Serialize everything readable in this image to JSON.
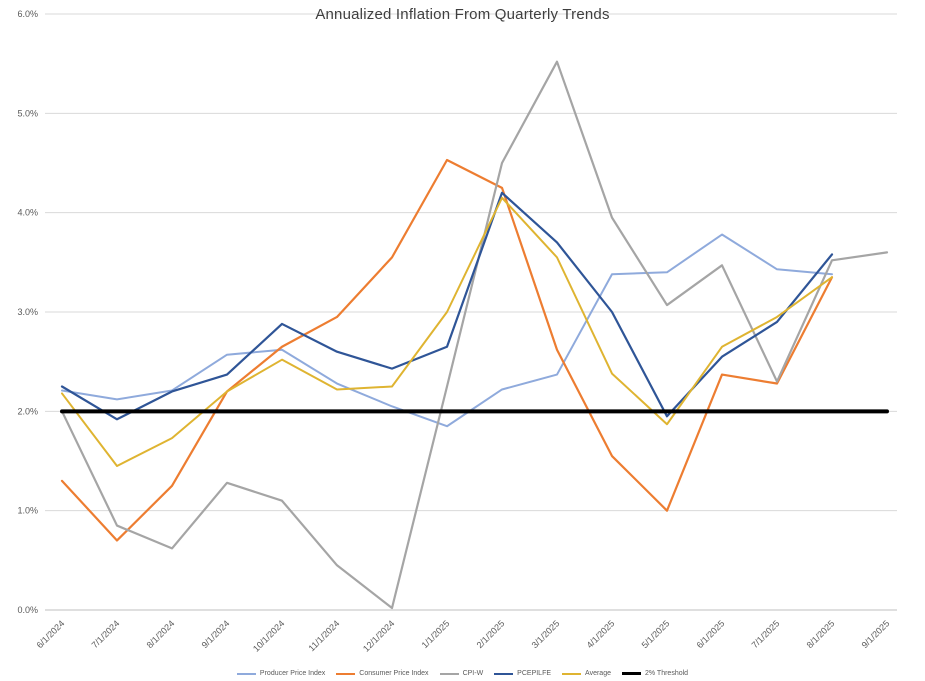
{
  "chart_data": {
    "type": "line",
    "title": "Annualized Inflation From Quarterly Trends",
    "categories": [
      "6/1/2024",
      "7/1/2024",
      "8/1/2024",
      "9/1/2024",
      "10/1/2024",
      "11/1/2024",
      "12/1/2024",
      "1/1/2025",
      "2/1/2025",
      "3/1/2025",
      "4/1/2025",
      "5/1/2025",
      "6/1/2025",
      "7/1/2025",
      "8/1/2025",
      "9/1/2025"
    ],
    "series": [
      {
        "name": "Producer Price Index",
        "color": "#8FAADC",
        "width": 2,
        "values": [
          2.21,
          2.12,
          2.21,
          2.57,
          2.62,
          2.28,
          2.05,
          1.85,
          2.22,
          2.37,
          3.38,
          3.4,
          3.78,
          3.43,
          3.38,
          null
        ]
      },
      {
        "name": "Consumer Price Index",
        "color": "#ED7D31",
        "width": 2.2,
        "values": [
          1.3,
          0.7,
          1.25,
          2.2,
          2.65,
          2.95,
          3.55,
          4.53,
          4.25,
          2.62,
          1.55,
          1.0,
          2.37,
          2.28,
          3.35,
          null
        ]
      },
      {
        "name": "CPI-W",
        "color": "#A5A5A5",
        "width": 2.2,
        "values": [
          2.0,
          0.85,
          0.62,
          1.28,
          1.1,
          0.45,
          0.02,
          2.25,
          4.5,
          5.52,
          3.95,
          3.07,
          3.47,
          2.3,
          3.52,
          3.6
        ]
      },
      {
        "name": "PCEPILFE",
        "color": "#2F5597",
        "width": 2.2,
        "values": [
          2.25,
          1.92,
          2.2,
          2.37,
          2.88,
          2.6,
          2.43,
          2.65,
          4.2,
          3.7,
          3.0,
          1.95,
          2.55,
          2.9,
          3.58,
          null
        ]
      },
      {
        "name": "Average",
        "color": "#DFB431",
        "width": 2,
        "values": [
          2.18,
          1.45,
          1.73,
          2.2,
          2.52,
          2.22,
          2.25,
          3.0,
          4.15,
          3.55,
          2.38,
          1.87,
          2.65,
          2.95,
          3.35,
          null
        ]
      },
      {
        "name": "2% Threshold",
        "color": "#000000",
        "width": 4,
        "values": [
          2.0,
          2.0,
          2.0,
          2.0,
          2.0,
          2.0,
          2.0,
          2.0,
          2.0,
          2.0,
          2.0,
          2.0,
          2.0,
          2.0,
          2.0,
          2.0
        ]
      }
    ],
    "xlabel": "",
    "ylabel": "",
    "ylim": [
      0,
      6
    ],
    "ytick_step": 1,
    "ytick_labels": [
      "0.0%",
      "1.0%",
      "2.0%",
      "3.0%",
      "4.0%",
      "5.0%",
      "6.0%"
    ],
    "grid": true,
    "legend_position": "bottom",
    "colors": {
      "background": "#FFFFFF",
      "gridline": "#D9D9D9",
      "axis_line": "#BFBFBF",
      "axis_text": "#595959",
      "title_text": "#3F3F3F"
    }
  }
}
